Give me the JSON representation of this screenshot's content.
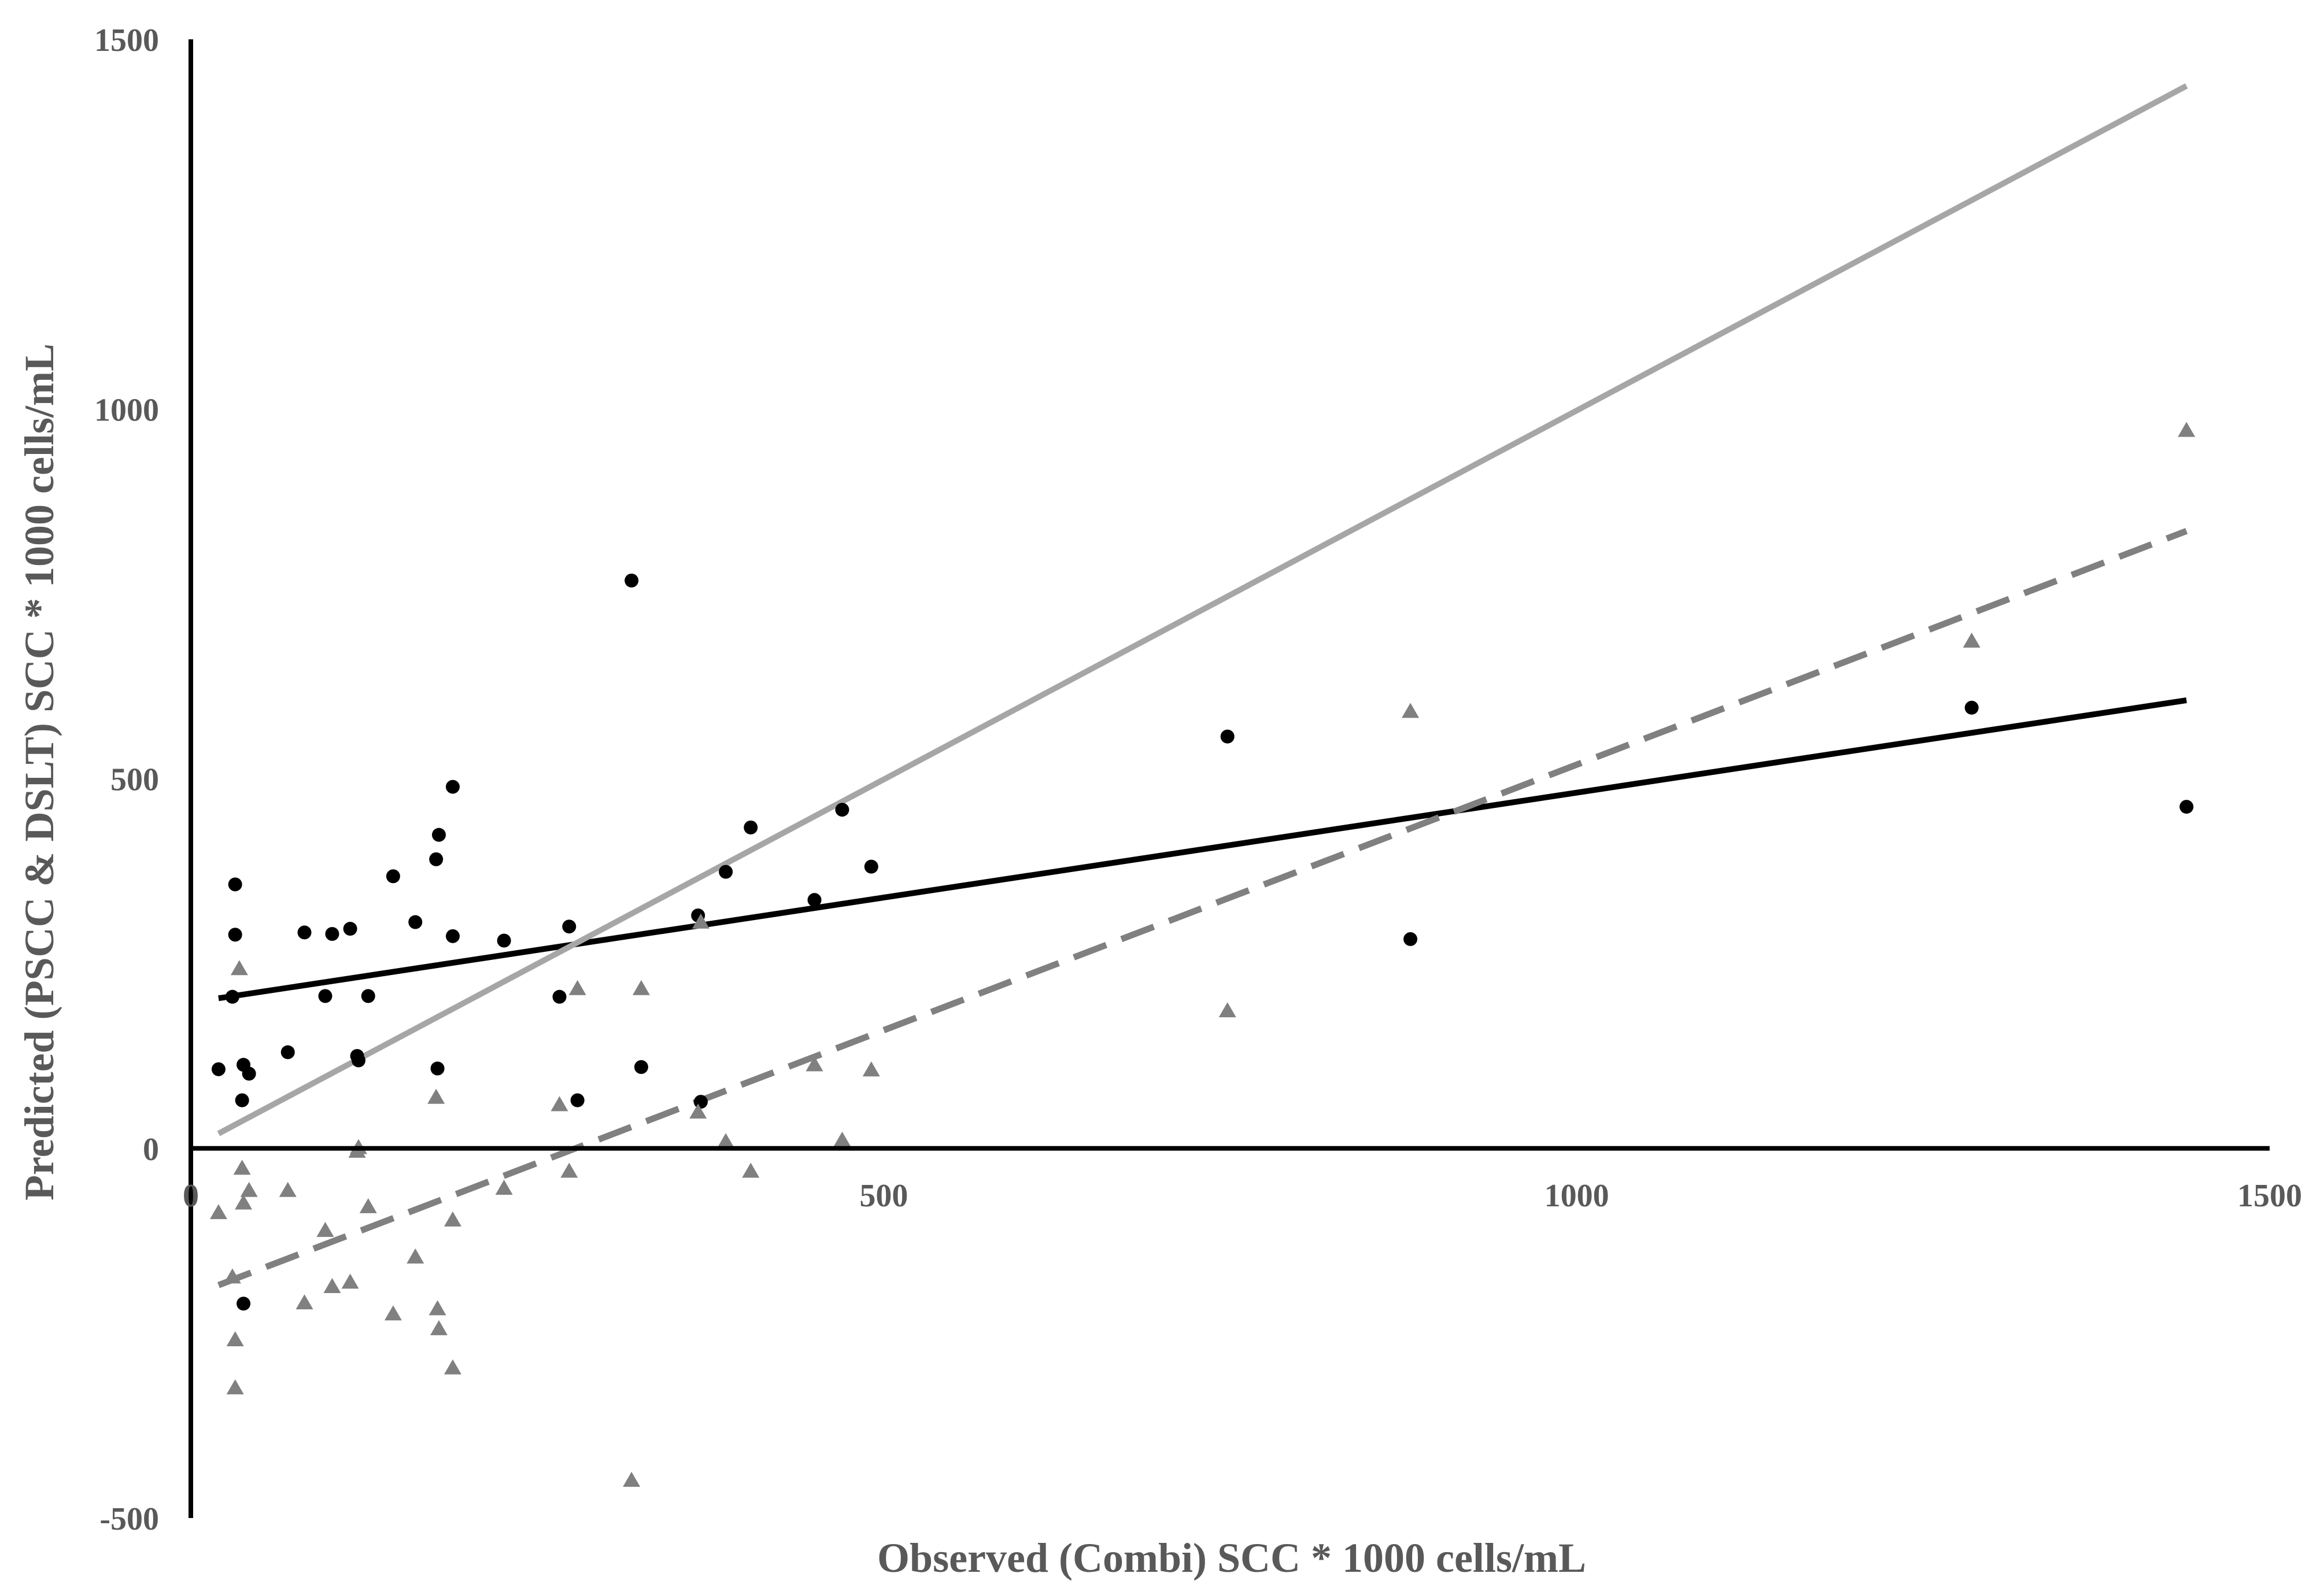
{
  "chart_data": {
    "type": "scatter",
    "title": "",
    "xlabel": "Observed (Combi) SCC * 1000 cells/mL",
    "ylabel": "Predicted (PSCC & DSLT) SCC * 1000 cells/mL",
    "xlim": [
      0,
      1500
    ],
    "ylim": [
      -500,
      1500
    ],
    "x_ticks": [
      0,
      500,
      1000,
      1500
    ],
    "y_ticks": [
      -500,
      0,
      500,
      1000,
      1500
    ],
    "x_tick_labels": [
      "0",
      "500",
      "1000",
      "1500"
    ],
    "y_tick_labels": [
      "-500",
      "0",
      "500",
      "1000",
      "1500"
    ],
    "grid": false,
    "legend": "none",
    "series": [
      {
        "marker": "circle",
        "color": "#000000",
        "points": [
          [
            20,
            107
          ],
          [
            30,
            205
          ],
          [
            32,
            357
          ],
          [
            32,
            289
          ],
          [
            37,
            65
          ],
          [
            38,
            -210
          ],
          [
            38,
            113
          ],
          [
            42,
            101
          ],
          [
            70,
            130
          ],
          [
            82,
            292
          ],
          [
            97,
            206
          ],
          [
            102,
            290
          ],
          [
            115,
            297
          ],
          [
            120,
            125
          ],
          [
            121,
            119
          ],
          [
            128,
            206
          ],
          [
            146,
            368
          ],
          [
            162,
            306
          ],
          [
            177,
            391
          ],
          [
            178,
            108
          ],
          [
            179,
            424
          ],
          [
            189,
            489
          ],
          [
            189,
            287
          ],
          [
            226,
            281
          ],
          [
            266,
            205
          ],
          [
            273,
            300
          ],
          [
            279,
            65
          ],
          [
            318,
            768
          ],
          [
            325,
            110
          ],
          [
            366,
            315
          ],
          [
            368,
            63
          ],
          [
            386,
            374
          ],
          [
            404,
            434
          ],
          [
            450,
            336
          ],
          [
            470,
            458
          ],
          [
            491,
            381
          ],
          [
            748,
            557
          ],
          [
            880,
            283
          ],
          [
            1285,
            596
          ],
          [
            1440,
            462
          ]
        ]
      },
      {
        "marker": "triangle",
        "color": "#808080",
        "points": [
          [
            20,
            -88
          ],
          [
            30,
            -175
          ],
          [
            32,
            -260
          ],
          [
            32,
            -325
          ],
          [
            35,
            242
          ],
          [
            37,
            -28
          ],
          [
            38,
            -75
          ],
          [
            42,
            -58
          ],
          [
            70,
            -58
          ],
          [
            82,
            -210
          ],
          [
            97,
            -112
          ],
          [
            102,
            -188
          ],
          [
            115,
            -182
          ],
          [
            120,
            -5
          ],
          [
            121,
            0
          ],
          [
            128,
            -80
          ],
          [
            146,
            -225
          ],
          [
            162,
            -148
          ],
          [
            177,
            68
          ],
          [
            178,
            -218
          ],
          [
            179,
            -245
          ],
          [
            189,
            -98
          ],
          [
            189,
            -298
          ],
          [
            226,
            -55
          ],
          [
            266,
            58
          ],
          [
            273,
            -32
          ],
          [
            279,
            215
          ],
          [
            318,
            -450
          ],
          [
            325,
            215
          ],
          [
            366,
            48
          ],
          [
            368,
            305
          ],
          [
            386,
            8
          ],
          [
            404,
            -32
          ],
          [
            450,
            112
          ],
          [
            470,
            10
          ],
          [
            491,
            105
          ],
          [
            748,
            185
          ],
          [
            880,
            590
          ],
          [
            1285,
            685
          ],
          [
            1440,
            970
          ]
        ]
      }
    ],
    "lines": [
      {
        "style": "solid",
        "color": "#000000",
        "from": [
          20,
          203
        ],
        "to": [
          1440,
          606
        ]
      },
      {
        "style": "solid",
        "color": "#a6a6a6",
        "from": [
          20,
          20
        ],
        "to": [
          1440,
          1437
        ]
      },
      {
        "style": "dashed",
        "color": "#808080",
        "from": [
          20,
          -185
        ],
        "to": [
          1440,
          835
        ]
      }
    ]
  }
}
